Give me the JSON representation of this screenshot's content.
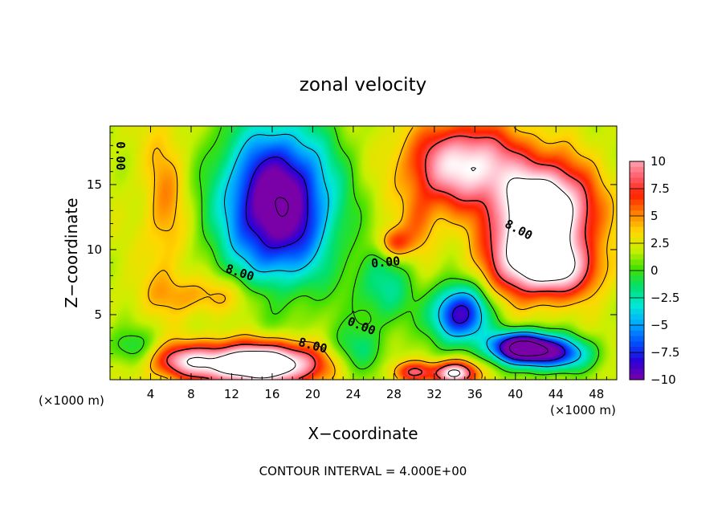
{
  "chart_data": {
    "type": "heatmap",
    "title": "zonal velocity",
    "xlabel": "X−coordinate",
    "ylabel": "Z−coordinate",
    "x_unit_left": "(×1000 m)",
    "x_unit_right": "(×1000 m)",
    "footer": "CONTOUR INTERVAL = 4.000E+00",
    "xlim": [
      0,
      50
    ],
    "ylim": [
      0,
      19.5
    ],
    "x_ticks": [
      "4",
      "8",
      "12",
      "16",
      "20",
      "24",
      "28",
      "32",
      "36",
      "40",
      "44",
      "48"
    ],
    "y_ticks": [
      "5",
      "10",
      "15"
    ],
    "colorbar": {
      "range": [
        -10,
        10
      ],
      "tick_labels": [
        "10",
        "7.5",
        "5",
        "2.5",
        "0",
        "−2.5",
        "−5",
        "−7.5",
        "−10"
      ],
      "colors": [
        "#7a00a8",
        "#2a00d8",
        "#0050ff",
        "#00a8ff",
        "#00e8d8",
        "#00e070",
        "#40e000",
        "#c8f000",
        "#ffd800",
        "#ff8000",
        "#ff2000",
        "#ff6070",
        "#ffb0c0",
        "#ffffff"
      ]
    },
    "contour_labels": [
      "0.00",
      "8.00",
      "0.00",
      "8.00",
      "0.00",
      "8.00"
    ],
    "features": [
      {
        "x": 16.5,
        "z": 13.5,
        "sx": 5.5,
        "sz": 6.0,
        "value": -14
      },
      {
        "x": 5.5,
        "z": 13.5,
        "sx": 2.2,
        "sz": 6.5,
        "value": 3
      },
      {
        "x": 10.0,
        "z": 6.5,
        "sx": 6.0,
        "sz": 1.6,
        "value": 3
      },
      {
        "x": 14.5,
        "z": 1.2,
        "sx": 6.5,
        "sz": 1.6,
        "value": 15
      },
      {
        "x": 7.0,
        "z": 1.5,
        "sx": 3.0,
        "sz": 1.2,
        "value": 5
      },
      {
        "x": 24.0,
        "z": 2.0,
        "sx": 3.0,
        "sz": 2.0,
        "value": -4
      },
      {
        "x": 28.0,
        "z": 10.5,
        "sx": 1.6,
        "sz": 1.2,
        "value": 5
      },
      {
        "x": 30.5,
        "z": 12.0,
        "sx": 1.8,
        "sz": 2.5,
        "value": 3
      },
      {
        "x": 35.0,
        "z": 16.5,
        "sx": 5.5,
        "sz": 3.2,
        "value": 10
      },
      {
        "x": 43.0,
        "z": 13.0,
        "sx": 4.5,
        "sz": 3.5,
        "value": 14
      },
      {
        "x": 44.0,
        "z": 8.5,
        "sx": 4.0,
        "sz": 2.2,
        "value": 9
      },
      {
        "x": 34.5,
        "z": 5.0,
        "sx": 2.8,
        "sz": 2.2,
        "value": -11
      },
      {
        "x": 40.5,
        "z": 2.5,
        "sx": 3.0,
        "sz": 1.2,
        "value": -14
      },
      {
        "x": 44.0,
        "z": 2.0,
        "sx": 3.5,
        "sz": 1.3,
        "value": -9
      },
      {
        "x": 34.0,
        "z": 0.5,
        "sx": 2.0,
        "sz": 0.9,
        "value": 11
      },
      {
        "x": 30.0,
        "z": 0.6,
        "sx": 2.0,
        "sz": 0.8,
        "value": 6
      },
      {
        "x": 27.0,
        "z": 7.0,
        "sx": 3.0,
        "sz": 3.0,
        "value": -4
      },
      {
        "x": 2.0,
        "z": 2.5,
        "sx": 2.5,
        "sz": 1.5,
        "value": -3
      },
      {
        "x": 40.0,
        "z": 9.5,
        "sx": 3.5,
        "sz": 3.0,
        "value": 6
      }
    ]
  }
}
